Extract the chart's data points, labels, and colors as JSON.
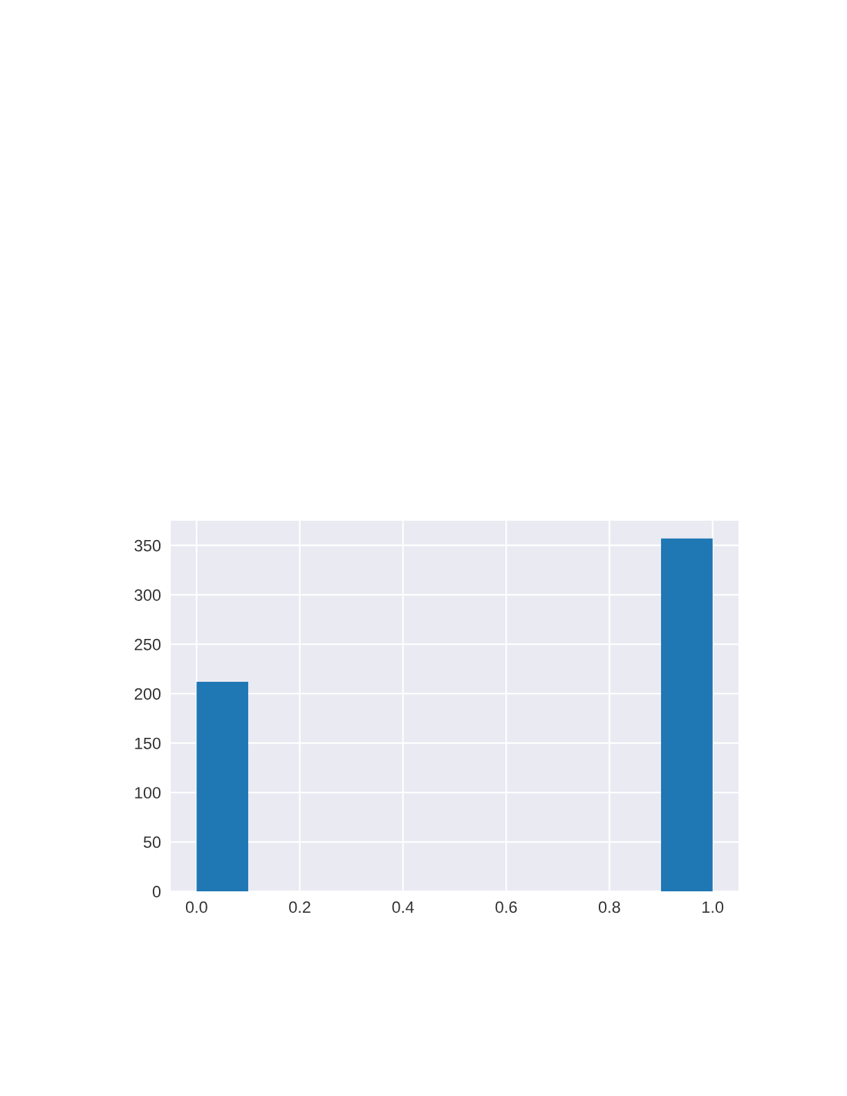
{
  "chart_data": {
    "type": "histogram",
    "bins": [
      0.0,
      0.1,
      0.2,
      0.3,
      0.4,
      0.5,
      0.6,
      0.7,
      0.8,
      0.9,
      1.0
    ],
    "values": [
      212,
      0,
      0,
      0,
      0,
      0,
      0,
      0,
      0,
      357
    ],
    "color": "#1f77b4",
    "xlim": [
      -0.05,
      1.05
    ],
    "xticks": [
      {
        "value": 0,
        "label": "0.0"
      },
      0.2,
      0.4,
      0.6,
      0.8,
      {
        "value": 1,
        "label": "1.0"
      }
    ],
    "ylim": [
      0,
      375
    ],
    "yticks": [
      0,
      50,
      100,
      150,
      200,
      250,
      300,
      350
    ],
    "grid": true
  }
}
